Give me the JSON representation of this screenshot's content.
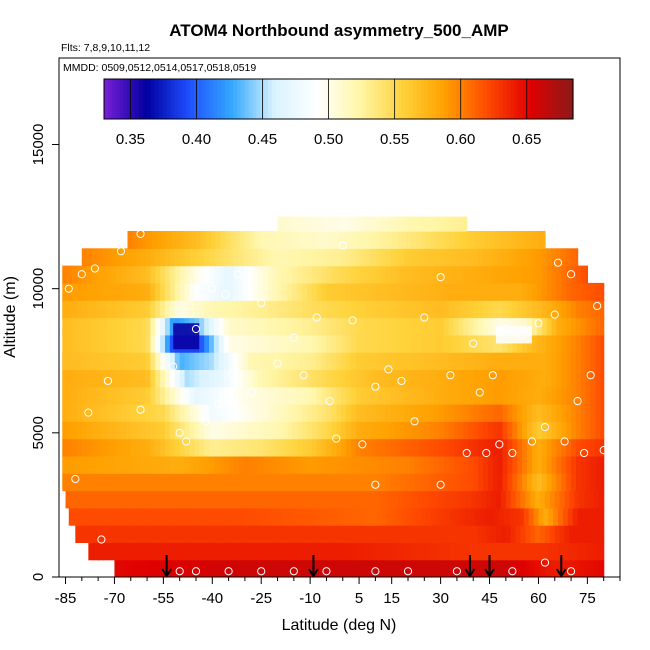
{
  "chart_data": {
    "type": "heatmap",
    "title": "ATOM4 Northbound asymmetry_500_AMP",
    "flights_label": "Flts: 7,8,9,10,11,12",
    "dates_label": "MMDD: 0509,0512,0514,0517,0518,0519",
    "xlabel": "Latitude (deg N)",
    "ylabel": "Altitude (m)",
    "xlim": [
      -87,
      85
    ],
    "ylim": [
      0,
      18000
    ],
    "x_ticks": [
      -85,
      -70,
      -55,
      -40,
      -25,
      -10,
      5,
      15,
      30,
      45,
      60,
      75
    ],
    "x_tick_labels": [
      "-85",
      "-70",
      "-55",
      "-40",
      "-25",
      "-10",
      "5",
      "15",
      "30",
      "45",
      "60",
      "75"
    ],
    "y_ticks": [
      0,
      5000,
      10000,
      15000
    ],
    "y_tick_labels": [
      "0",
      "5000",
      "10000",
      "15000"
    ],
    "colorbar": {
      "min": 0.33,
      "max": 0.685,
      "ticks": [
        0.35,
        0.4,
        0.45,
        0.5,
        0.55,
        0.6,
        0.65
      ],
      "tick_labels": [
        "0.35",
        "0.40",
        "0.45",
        "0.50",
        "0.55",
        "0.60",
        "0.65"
      ],
      "colors": [
        "#7a1fd6",
        "#0000a0",
        "#1f4fff",
        "#34a8ff",
        "#d9f3ff",
        "#ffffff",
        "#fff6a8",
        "#ffd23a",
        "#ffa000",
        "#ff4a00",
        "#e00000",
        "#8b1a1a"
      ]
    },
    "profile_arrows_lat": [
      -54,
      -9,
      39,
      45,
      67
    ],
    "altitude_bands": [
      {
        "alt": [
          0,
          600
        ],
        "lat": [
          -70,
          80
        ],
        "nodes": [
          [
            -70,
            0.65
          ],
          [
            -30,
            0.66
          ],
          [
            0,
            0.66
          ],
          [
            30,
            0.66
          ],
          [
            50,
            0.66
          ],
          [
            65,
            0.64
          ],
          [
            80,
            0.65
          ]
        ]
      },
      {
        "alt": [
          600,
          1200
        ],
        "lat": [
          -78,
          80
        ],
        "nodes": [
          [
            -78,
            0.64
          ],
          [
            -40,
            0.64
          ],
          [
            0,
            0.64
          ],
          [
            40,
            0.63
          ],
          [
            60,
            0.63
          ],
          [
            80,
            0.64
          ]
        ]
      },
      {
        "alt": [
          1200,
          1800
        ],
        "lat": [
          -82,
          80
        ],
        "nodes": [
          [
            -82,
            0.63
          ],
          [
            -40,
            0.63
          ],
          [
            0,
            0.63
          ],
          [
            40,
            0.63
          ],
          [
            50,
            0.64
          ],
          [
            60,
            0.61
          ],
          [
            70,
            0.64
          ],
          [
            80,
            0.64
          ]
        ]
      },
      {
        "alt": [
          1800,
          2400
        ],
        "lat": [
          -84,
          80
        ],
        "nodes": [
          [
            -84,
            0.62
          ],
          [
            -30,
            0.62
          ],
          [
            10,
            0.61
          ],
          [
            45,
            0.64
          ],
          [
            55,
            0.63
          ],
          [
            62,
            0.58
          ],
          [
            72,
            0.64
          ],
          [
            80,
            0.64
          ]
        ]
      },
      {
        "alt": [
          2400,
          3000
        ],
        "lat": [
          -85,
          80
        ],
        "nodes": [
          [
            -85,
            0.61
          ],
          [
            -30,
            0.61
          ],
          [
            10,
            0.61
          ],
          [
            40,
            0.63
          ],
          [
            48,
            0.64
          ],
          [
            60,
            0.58
          ],
          [
            72,
            0.63
          ],
          [
            80,
            0.64
          ]
        ]
      },
      {
        "alt": [
          3000,
          3600
        ],
        "lat": [
          -86,
          80
        ],
        "nodes": [
          [
            -86,
            0.6
          ],
          [
            -30,
            0.6
          ],
          [
            10,
            0.6
          ],
          [
            40,
            0.62
          ],
          [
            48,
            0.64
          ],
          [
            60,
            0.57
          ],
          [
            72,
            0.63
          ],
          [
            80,
            0.64
          ]
        ]
      },
      {
        "alt": [
          3600,
          4200
        ],
        "lat": [
          -86,
          80
        ],
        "nodes": [
          [
            -86,
            0.59
          ],
          [
            -50,
            0.58
          ],
          [
            -30,
            0.6
          ],
          [
            -10,
            0.59
          ],
          [
            20,
            0.6
          ],
          [
            40,
            0.62
          ],
          [
            48,
            0.64
          ],
          [
            60,
            0.58
          ],
          [
            72,
            0.63
          ],
          [
            80,
            0.64
          ]
        ]
      },
      {
        "alt": [
          4200,
          4800
        ],
        "lat": [
          -86,
          80
        ],
        "nodes": [
          [
            -86,
            0.6
          ],
          [
            -60,
            0.58
          ],
          [
            -40,
            0.53
          ],
          [
            -25,
            0.54
          ],
          [
            -10,
            0.56
          ],
          [
            5,
            0.6
          ],
          [
            30,
            0.62
          ],
          [
            48,
            0.64
          ],
          [
            60,
            0.58
          ],
          [
            72,
            0.62
          ],
          [
            80,
            0.63
          ]
        ]
      },
      {
        "alt": [
          4800,
          5400
        ],
        "lat": [
          -86,
          80
        ],
        "nodes": [
          [
            -86,
            0.59
          ],
          [
            -55,
            0.56
          ],
          [
            -40,
            0.5
          ],
          [
            -20,
            0.52
          ],
          [
            -5,
            0.55
          ],
          [
            5,
            0.58
          ],
          [
            30,
            0.6
          ],
          [
            48,
            0.63
          ],
          [
            60,
            0.56
          ],
          [
            72,
            0.6
          ],
          [
            80,
            0.62
          ]
        ]
      },
      {
        "alt": [
          5400,
          6000
        ],
        "lat": [
          -86,
          80
        ],
        "nodes": [
          [
            -86,
            0.58
          ],
          [
            -55,
            0.55
          ],
          [
            -40,
            0.48
          ],
          [
            -22,
            0.51
          ],
          [
            -5,
            0.54
          ],
          [
            5,
            0.57
          ],
          [
            30,
            0.59
          ],
          [
            48,
            0.61
          ],
          [
            60,
            0.57
          ],
          [
            72,
            0.6
          ],
          [
            80,
            0.62
          ]
        ]
      },
      {
        "alt": [
          6000,
          6600
        ],
        "lat": [
          -86,
          80
        ],
        "nodes": [
          [
            -86,
            0.58
          ],
          [
            -60,
            0.56
          ],
          [
            -45,
            0.47
          ],
          [
            -30,
            0.5
          ],
          [
            -10,
            0.52
          ],
          [
            5,
            0.56
          ],
          [
            30,
            0.58
          ],
          [
            48,
            0.59
          ],
          [
            60,
            0.58
          ],
          [
            72,
            0.6
          ],
          [
            80,
            0.62
          ]
        ]
      },
      {
        "alt": [
          6600,
          7200
        ],
        "lat": [
          -86,
          80
        ],
        "nodes": [
          [
            -86,
            0.58
          ],
          [
            -60,
            0.57
          ],
          [
            -48,
            0.45
          ],
          [
            -38,
            0.47
          ],
          [
            -25,
            0.52
          ],
          [
            -5,
            0.55
          ],
          [
            10,
            0.57
          ],
          [
            30,
            0.58
          ],
          [
            48,
            0.59
          ],
          [
            62,
            0.58
          ],
          [
            72,
            0.6
          ],
          [
            80,
            0.62
          ]
        ]
      },
      {
        "alt": [
          7200,
          7800
        ],
        "lat": [
          -86,
          80
        ],
        "nodes": [
          [
            -86,
            0.57
          ],
          [
            -60,
            0.56
          ],
          [
            -50,
            0.43
          ],
          [
            -40,
            0.45
          ],
          [
            -28,
            0.52
          ],
          [
            -10,
            0.53
          ],
          [
            5,
            0.56
          ],
          [
            30,
            0.57
          ],
          [
            48,
            0.58
          ],
          [
            62,
            0.58
          ],
          [
            72,
            0.6
          ],
          [
            80,
            0.62
          ]
        ]
      },
      {
        "alt": [
          7800,
          8400
        ],
        "lat": [
          -86,
          80
        ],
        "nodes": [
          [
            -86,
            0.57
          ],
          [
            -60,
            0.55
          ],
          [
            -52,
            0.39
          ],
          [
            -44,
            0.39
          ],
          [
            -35,
            0.5
          ],
          [
            -10,
            0.52
          ],
          [
            5,
            0.55
          ],
          [
            30,
            0.56
          ],
          [
            48,
            0.54
          ],
          [
            58,
            0.57
          ],
          [
            72,
            0.6
          ],
          [
            80,
            0.62
          ]
        ]
      },
      {
        "alt": [
          8400,
          9000
        ],
        "lat": [
          -86,
          80
        ],
        "nodes": [
          [
            -86,
            0.57
          ],
          [
            -60,
            0.55
          ],
          [
            -52,
            0.42
          ],
          [
            -44,
            0.44
          ],
          [
            -35,
            0.51
          ],
          [
            -10,
            0.53
          ],
          [
            5,
            0.55
          ],
          [
            30,
            0.56
          ],
          [
            48,
            0.5
          ],
          [
            56,
            0.51
          ],
          [
            66,
            0.58
          ],
          [
            80,
            0.61
          ]
        ]
      },
      {
        "alt": [
          9000,
          9600
        ],
        "lat": [
          -86,
          80
        ],
        "nodes": [
          [
            -86,
            0.58
          ],
          [
            -60,
            0.56
          ],
          [
            -50,
            0.5
          ],
          [
            -40,
            0.52
          ],
          [
            -25,
            0.53
          ],
          [
            -5,
            0.55
          ],
          [
            10,
            0.56
          ],
          [
            30,
            0.57
          ],
          [
            48,
            0.55
          ],
          [
            60,
            0.57
          ],
          [
            72,
            0.6
          ],
          [
            80,
            0.61
          ]
        ]
      },
      {
        "alt": [
          9600,
          10200
        ],
        "lat": [
          -86,
          80
        ],
        "nodes": [
          [
            -86,
            0.59
          ],
          [
            -60,
            0.58
          ],
          [
            -45,
            0.49
          ],
          [
            -35,
            0.47
          ],
          [
            -20,
            0.52
          ],
          [
            -5,
            0.56
          ],
          [
            15,
            0.57
          ],
          [
            35,
            0.58
          ],
          [
            55,
            0.58
          ],
          [
            70,
            0.61
          ],
          [
            80,
            0.62
          ]
        ]
      },
      {
        "alt": [
          10200,
          10800
        ],
        "lat": [
          -86,
          75
        ],
        "nodes": [
          [
            -86,
            0.6
          ],
          [
            -60,
            0.57
          ],
          [
            -45,
            0.5
          ],
          [
            -35,
            0.47
          ],
          [
            -20,
            0.52
          ],
          [
            0,
            0.55
          ],
          [
            20,
            0.57
          ],
          [
            40,
            0.58
          ],
          [
            60,
            0.59
          ],
          [
            75,
            0.62
          ]
        ]
      },
      {
        "alt": [
          10800,
          11400
        ],
        "lat": [
          -80,
          72
        ],
        "nodes": [
          [
            -80,
            0.6
          ],
          [
            -60,
            0.58
          ],
          [
            -40,
            0.55
          ],
          [
            -20,
            0.52
          ],
          [
            0,
            0.53
          ],
          [
            20,
            0.56
          ],
          [
            40,
            0.57
          ],
          [
            60,
            0.59
          ],
          [
            72,
            0.61
          ]
        ]
      },
      {
        "alt": [
          11400,
          12000
        ],
        "lat": [
          -66,
          62
        ],
        "nodes": [
          [
            -66,
            0.6
          ],
          [
            -45,
            0.57
          ],
          [
            -25,
            0.52
          ],
          [
            -5,
            0.51
          ],
          [
            15,
            0.53
          ],
          [
            40,
            0.56
          ],
          [
            62,
            0.58
          ]
        ]
      },
      {
        "alt": [
          12000,
          12500
        ],
        "lat": [
          -20,
          38
        ],
        "nodes": [
          [
            -20,
            0.51
          ],
          [
            0,
            0.5
          ],
          [
            20,
            0.52
          ],
          [
            38,
            0.53
          ]
        ]
      }
    ],
    "hotspots": [
      {
        "lat": [
          -52,
          -44
        ],
        "alt": [
          7900,
          8800
        ],
        "value": 0.36
      },
      {
        "lat": [
          47,
          58
        ],
        "alt": [
          8100,
          8700
        ],
        "value": 0.49
      }
    ],
    "sample_points": [
      [
        -80,
        10500
      ],
      [
        -76,
        10700
      ],
      [
        -68,
        11300
      ],
      [
        -62,
        11900
      ],
      [
        -72,
        6800
      ],
      [
        -62,
        5800
      ],
      [
        -52,
        7300
      ],
      [
        -50,
        5000
      ],
      [
        -48,
        4700
      ],
      [
        -45,
        8600
      ],
      [
        -42,
        5400
      ],
      [
        -40,
        10000
      ],
      [
        -38,
        6000
      ],
      [
        -36,
        9800
      ],
      [
        -34,
        7000
      ],
      [
        -32,
        10500
      ],
      [
        -28,
        6400
      ],
      [
        -25,
        9500
      ],
      [
        -20,
        7400
      ],
      [
        -15,
        8300
      ],
      [
        -12,
        7000
      ],
      [
        -8,
        9000
      ],
      [
        -4,
        6100
      ],
      [
        -2,
        4800
      ],
      [
        0,
        11500
      ],
      [
        3,
        8900
      ],
      [
        6,
        4600
      ],
      [
        10,
        6600
      ],
      [
        14,
        7200
      ],
      [
        18,
        6800
      ],
      [
        22,
        5400
      ],
      [
        25,
        9000
      ],
      [
        30,
        10400
      ],
      [
        33,
        7000
      ],
      [
        38,
        4300
      ],
      [
        40,
        8100
      ],
      [
        42,
        6400
      ],
      [
        44,
        4300
      ],
      [
        46,
        7000
      ],
      [
        48,
        4600
      ],
      [
        50,
        8600
      ],
      [
        52,
        4300
      ],
      [
        55,
        8400
      ],
      [
        58,
        4700
      ],
      [
        60,
        8800
      ],
      [
        62,
        5200
      ],
      [
        65,
        9100
      ],
      [
        66,
        10900
      ],
      [
        68,
        4700
      ],
      [
        70,
        10500
      ],
      [
        72,
        6100
      ],
      [
        74,
        4300
      ],
      [
        76,
        7000
      ],
      [
        78,
        9400
      ],
      [
        80,
        4400
      ],
      [
        -78,
        5700
      ],
      [
        -84,
        10000
      ],
      [
        -50,
        200
      ],
      [
        -45,
        200
      ],
      [
        -35,
        200
      ],
      [
        -25,
        200
      ],
      [
        -15,
        200
      ],
      [
        -5,
        200
      ],
      [
        10,
        200
      ],
      [
        20,
        200
      ],
      [
        35,
        200
      ],
      [
        52,
        200
      ],
      [
        62,
        500
      ],
      [
        70,
        200
      ],
      [
        -82,
        3400
      ],
      [
        30,
        3200
      ],
      [
        10,
        3200
      ],
      [
        -74,
        1300
      ]
    ]
  }
}
